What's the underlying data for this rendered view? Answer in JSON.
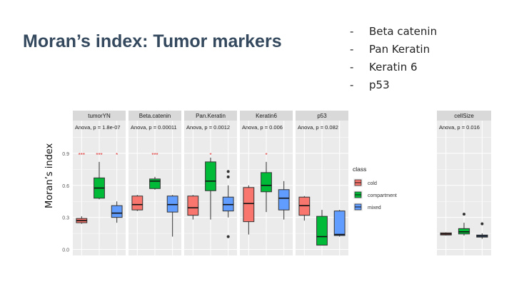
{
  "slide": {
    "title": "Moran’s index: Tumor markers",
    "bullets": [
      {
        "dash": "-",
        "text": "Beta catenin"
      },
      {
        "dash": "-",
        "text": "Pan Keratin"
      },
      {
        "dash": "-",
        "text": "Keratin 6"
      },
      {
        "dash": "-",
        "text": "p53"
      }
    ]
  },
  "chart_data": [
    {
      "type": "boxplot",
      "ylabel": "Moran’s index",
      "ylim": [
        -0.03,
        1.1
      ],
      "yticks": [
        0.0,
        0.3,
        0.6,
        0.9
      ],
      "ytick_labels": [
        "0.0",
        "0.3",
        "0.6",
        "0.9"
      ],
      "grid": true,
      "groups": [
        "cold",
        "compartment",
        "mixed"
      ],
      "colors": {
        "cold": "#f8766d",
        "compartment": "#00ba38",
        "mixed": "#619cff"
      },
      "legend": {
        "title": "class",
        "entries": [
          "cold",
          "compartment",
          "mixed"
        ],
        "position": "right"
      },
      "panels": [
        {
          "name": "tumorYN",
          "stat": "Anova, p = 1.8e-07",
          "stars": [
            {
              "group": "cold",
              "text": "***"
            },
            {
              "group": "compartment",
              "text": "***"
            },
            {
              "group": "mixed",
              "text": "*"
            }
          ],
          "boxes": [
            {
              "group": "cold",
              "min": 0.24,
              "q1": 0.25,
              "median": 0.27,
              "q3": 0.29,
              "max": 0.31,
              "outliers": []
            },
            {
              "group": "compartment",
              "min": 0.47,
              "q1": 0.48,
              "median": 0.575,
              "q3": 0.67,
              "max": 0.82,
              "outliers": []
            },
            {
              "group": "mixed",
              "min": 0.25,
              "q1": 0.3,
              "median": 0.34,
              "q3": 0.41,
              "max": 0.45,
              "outliers": []
            }
          ]
        },
        {
          "name": "Beta.catenin",
          "stat": "Anova, p = 0.00011",
          "stars": [
            {
              "group": "compartment",
              "text": "***"
            }
          ],
          "boxes": [
            {
              "group": "cold",
              "min": 0.36,
              "q1": 0.37,
              "median": 0.42,
              "q3": 0.5,
              "max": 0.51,
              "outliers": []
            },
            {
              "group": "compartment",
              "min": 0.56,
              "q1": 0.57,
              "median": 0.64,
              "q3": 0.66,
              "max": 0.68,
              "outliers": []
            },
            {
              "group": "mixed",
              "min": 0.12,
              "q1": 0.35,
              "median": 0.42,
              "q3": 0.5,
              "max": 0.51,
              "outliers": []
            }
          ]
        },
        {
          "name": "Pan.Keratin",
          "stat": "Anova, p = 0.0012",
          "stars": [
            {
              "group": "compartment",
              "text": "*"
            }
          ],
          "boxes": [
            {
              "group": "cold",
              "min": 0.28,
              "q1": 0.32,
              "median": 0.39,
              "q3": 0.5,
              "max": 0.51,
              "outliers": []
            },
            {
              "group": "compartment",
              "min": 0.28,
              "q1": 0.55,
              "median": 0.64,
              "q3": 0.82,
              "max": 0.86,
              "outliers": []
            },
            {
              "group": "mixed",
              "min": 0.3,
              "q1": 0.36,
              "median": 0.42,
              "q3": 0.49,
              "max": 0.6,
              "outliers": [
                0.73,
                0.68,
                0.12
              ]
            }
          ]
        },
        {
          "name": "Keratin6",
          "stat": "Anova, p = 0.006",
          "stars": [
            {
              "group": "compartment",
              "text": "*"
            }
          ],
          "boxes": [
            {
              "group": "cold",
              "min": 0.14,
              "q1": 0.26,
              "median": 0.43,
              "q3": 0.58,
              "max": 0.6,
              "outliers": []
            },
            {
              "group": "compartment",
              "min": 0.35,
              "q1": 0.54,
              "median": 0.6,
              "q3": 0.72,
              "max": 0.82,
              "outliers": []
            },
            {
              "group": "mixed",
              "min": 0.28,
              "q1": 0.37,
              "median": 0.48,
              "q3": 0.56,
              "max": 0.64,
              "outliers": []
            }
          ]
        },
        {
          "name": "p53",
          "stat": "Anova, p = 0.082",
          "stars": [],
          "boxes": [
            {
              "group": "cold",
              "min": 0.27,
              "q1": 0.32,
              "median": 0.41,
              "q3": 0.49,
              "max": 0.5,
              "outliers": []
            },
            {
              "group": "compartment",
              "min": 0.04,
              "q1": 0.04,
              "median": 0.12,
              "q3": 0.31,
              "max": 0.37,
              "outliers": []
            },
            {
              "group": "mixed",
              "min": 0.12,
              "q1": 0.13,
              "median": 0.14,
              "q3": 0.36,
              "max": 0.37,
              "outliers": []
            }
          ]
        }
      ]
    },
    {
      "type": "boxplot",
      "ylim": [
        -0.03,
        1.1
      ],
      "grid": true,
      "panels": [
        {
          "name": "cellSize",
          "stat": "Anova, p = 0.016",
          "stars": [],
          "boxes": [
            {
              "group": "cold",
              "min": 0.13,
              "q1": 0.135,
              "median": 0.145,
              "q3": 0.155,
              "max": 0.16,
              "outliers": []
            },
            {
              "group": "compartment",
              "min": 0.13,
              "q1": 0.145,
              "median": 0.165,
              "q3": 0.195,
              "max": 0.25,
              "outliers": [
                0.33
              ]
            },
            {
              "group": "mixed",
              "min": 0.1,
              "q1": 0.115,
              "median": 0.125,
              "q3": 0.135,
              "max": 0.15,
              "outliers": [
                0.24
              ]
            }
          ]
        }
      ]
    }
  ]
}
